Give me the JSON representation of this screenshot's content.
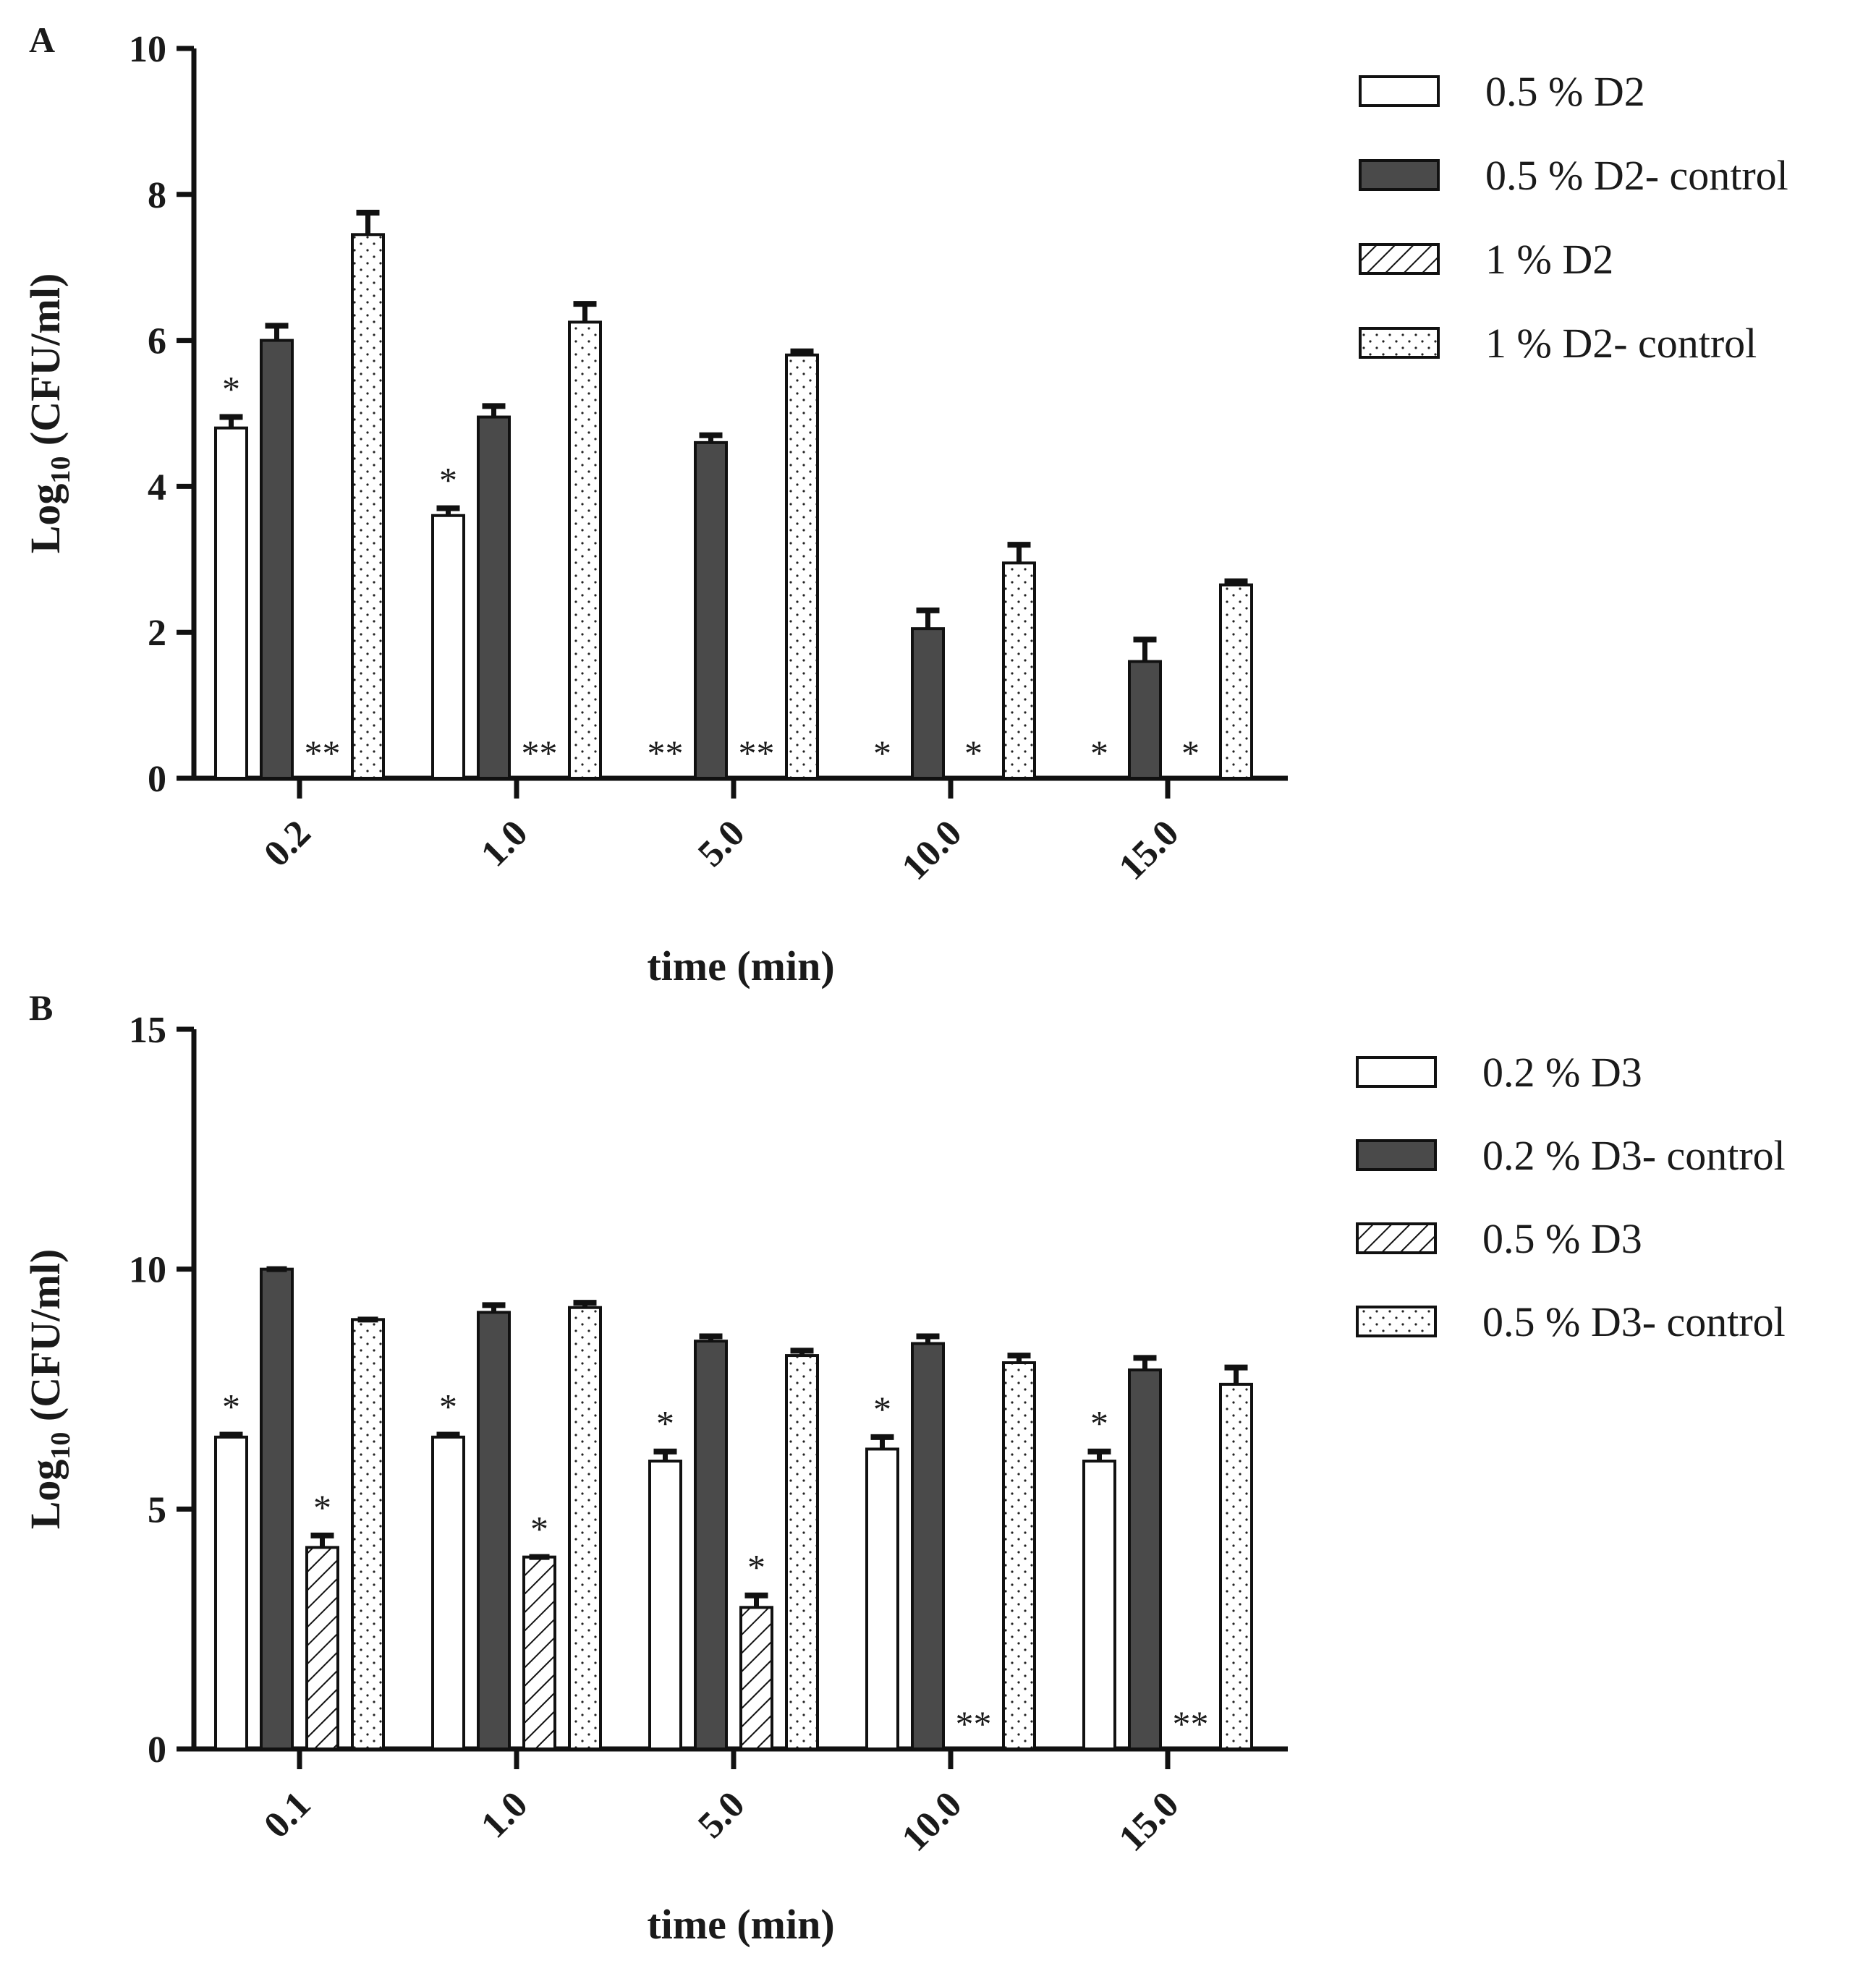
{
  "colors": {
    "axis": "#111111",
    "dark": "#4a4a4a",
    "ink": "#1a1a1a",
    "white": "#ffffff"
  },
  "chart_data": [
    {
      "panel_label": "A",
      "type": "bar",
      "xlabel": "time (min)",
      "ylabel_prefix": "Log",
      "ylabel_sub": "10",
      "ylabel_suffix": " (CFU/ml)",
      "ylim": [
        0,
        10
      ],
      "yticks": [
        0,
        2,
        4,
        6,
        8,
        10
      ],
      "ytick_labels": [
        "0",
        "2",
        "4",
        "6",
        "8",
        "10"
      ],
      "categories": [
        "0.2",
        "1.0",
        "5.0",
        "10.0",
        "15.0"
      ],
      "series": [
        {
          "name": "0.5 % D2",
          "fill": "white",
          "values": [
            4.8,
            3.6,
            0,
            0,
            0
          ],
          "errors": [
            0.15,
            0.1,
            0,
            0,
            0
          ],
          "annotations": [
            "*",
            "*",
            "**",
            "*",
            "*"
          ]
        },
        {
          "name": "0.5 % D2- control",
          "fill": "dark",
          "values": [
            6.0,
            4.95,
            4.6,
            2.05,
            1.6
          ],
          "errors": [
            0.2,
            0.15,
            0.1,
            0.25,
            0.3
          ],
          "annotations": [
            "",
            "",
            "",
            "",
            ""
          ]
        },
        {
          "name": "1 % D2",
          "fill": "hatch",
          "values": [
            0,
            0,
            0,
            0,
            0
          ],
          "errors": [
            0,
            0,
            0,
            0,
            0
          ],
          "annotations": [
            "**",
            "**",
            "**",
            "*",
            "*"
          ]
        },
        {
          "name": "1 % D2- control",
          "fill": "dots",
          "values": [
            7.45,
            6.25,
            5.8,
            2.95,
            2.65
          ],
          "errors": [
            0.3,
            0.25,
            0.05,
            0.25,
            0.05
          ],
          "annotations": [
            "",
            "",
            "",
            "",
            ""
          ]
        }
      ]
    },
    {
      "panel_label": "B",
      "type": "bar",
      "xlabel": "time (min)",
      "ylabel_prefix": "Log",
      "ylabel_sub": "10",
      "ylabel_suffix": " (CFU/ml)",
      "ylim": [
        0,
        15
      ],
      "yticks": [
        0,
        5,
        10,
        15
      ],
      "ytick_labels": [
        "0",
        "5",
        "10",
        "15"
      ],
      "categories": [
        "0.1",
        "1.0",
        "5.0",
        "10.0",
        "15.0"
      ],
      "series": [
        {
          "name": "0.2 % D3",
          "fill": "white",
          "values": [
            6.5,
            6.5,
            6.0,
            6.25,
            6.0
          ],
          "errors": [
            0.05,
            0.05,
            0.2,
            0.25,
            0.2
          ],
          "annotations": [
            "*",
            "*",
            "*",
            "*",
            "*"
          ]
        },
        {
          "name": "0.2 % D3- control",
          "fill": "dark",
          "values": [
            10.0,
            9.1,
            8.5,
            8.45,
            7.9
          ],
          "errors": [
            0,
            0.15,
            0.1,
            0.15,
            0.25
          ],
          "annotations": [
            "",
            "",
            "",
            "",
            ""
          ]
        },
        {
          "name": "0.5 % D3",
          "fill": "hatch",
          "values": [
            4.2,
            4.0,
            2.95,
            0,
            0
          ],
          "errors": [
            0.25,
            0,
            0.25,
            0,
            0
          ],
          "annotations": [
            "*",
            "*",
            "*",
            "**",
            "**"
          ]
        },
        {
          "name": "0.5 % D3- control",
          "fill": "dots",
          "values": [
            8.95,
            9.2,
            8.2,
            8.05,
            7.6
          ],
          "errors": [
            0,
            0.1,
            0.1,
            0.15,
            0.35
          ],
          "annotations": [
            "",
            "",
            "",
            "",
            ""
          ]
        }
      ]
    }
  ]
}
